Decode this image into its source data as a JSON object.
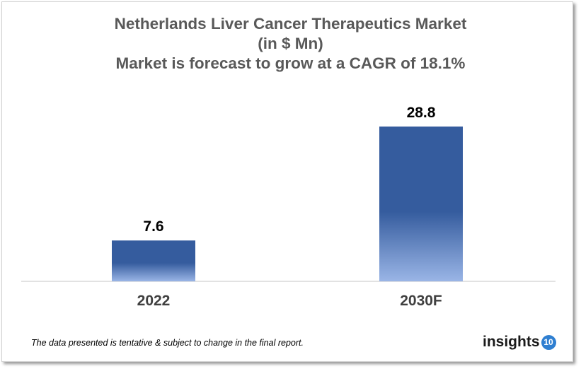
{
  "chart_data": {
    "type": "bar",
    "title": "Netherlands Liver Cancer Therapeutics Market",
    "subtitle": "(in $ Mn)",
    "subtitle2": "Market is forecast to grow at a CAGR of 18.1%",
    "categories": [
      "2022",
      "2030F"
    ],
    "values": [
      7.6,
      28.8
    ],
    "value_labels": [
      "7.6",
      "28.8"
    ],
    "ylim": [
      0,
      28.8
    ],
    "grid": false,
    "bar_color_top": "#355C9E",
    "bar_color_bottom": "#9AB5E6"
  },
  "footer": {
    "note": "The data presented is tentative & subject to change in the final report.",
    "logo_text": "insights",
    "logo_number": "10"
  }
}
